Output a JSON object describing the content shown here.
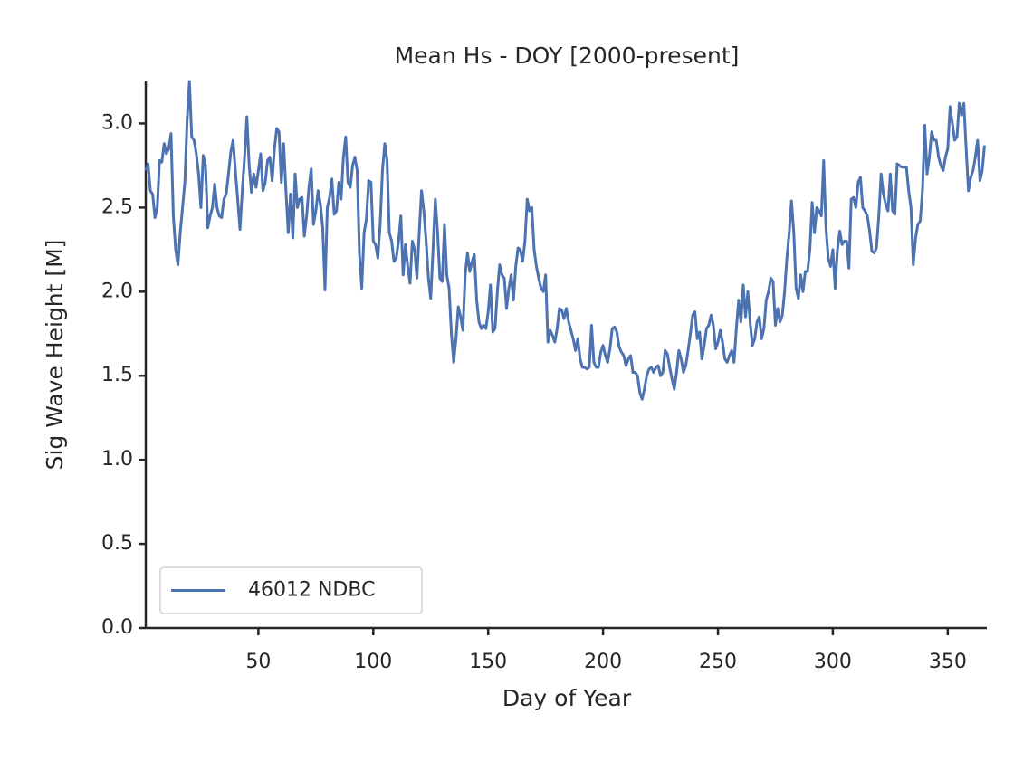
{
  "chart_data": {
    "type": "line",
    "title": "Mean Hs - DOY [2000-present]",
    "x_label": "Day of Year",
    "y_label": "Sig Wave Height [M]",
    "x": [
      1,
      2,
      3,
      4,
      5,
      6,
      7,
      8,
      9,
      10,
      11,
      12,
      13,
      14,
      15,
      16,
      17,
      18,
      19,
      20,
      21,
      22,
      23,
      24,
      25,
      26,
      27,
      28,
      29,
      30,
      31,
      32,
      33,
      34,
      35,
      36,
      37,
      38,
      39,
      40,
      41,
      42,
      43,
      44,
      45,
      46,
      47,
      48,
      49,
      50,
      51,
      52,
      53,
      54,
      55,
      56,
      57,
      58,
      59,
      60,
      61,
      62,
      63,
      64,
      65,
      66,
      67,
      68,
      69,
      70,
      71,
      72,
      73,
      74,
      75,
      76,
      77,
      78,
      79,
      80,
      81,
      82,
      83,
      84,
      85,
      86,
      87,
      88,
      89,
      90,
      91,
      92,
      93,
      94,
      95,
      96,
      97,
      98,
      99,
      100,
      101,
      102,
      103,
      104,
      105,
      106,
      107,
      108,
      109,
      110,
      111,
      112,
      113,
      114,
      115,
      116,
      117,
      118,
      119,
      120,
      121,
      122,
      123,
      124,
      125,
      126,
      127,
      128,
      129,
      130,
      131,
      132,
      133,
      134,
      135,
      136,
      137,
      138,
      139,
      140,
      141,
      142,
      143,
      144,
      145,
      146,
      147,
      148,
      149,
      150,
      151,
      152,
      153,
      154,
      155,
      156,
      157,
      158,
      159,
      160,
      161,
      162,
      163,
      164,
      165,
      166,
      167,
      168,
      169,
      170,
      171,
      172,
      173,
      174,
      175,
      176,
      177,
      178,
      179,
      180,
      181,
      182,
      183,
      184,
      185,
      186,
      187,
      188,
      189,
      190,
      191,
      192,
      193,
      194,
      195,
      196,
      197,
      198,
      199,
      200,
      201,
      202,
      203,
      204,
      205,
      206,
      207,
      208,
      209,
      210,
      211,
      212,
      213,
      214,
      215,
      216,
      217,
      218,
      219,
      220,
      221,
      222,
      223,
      224,
      225,
      226,
      227,
      228,
      229,
      230,
      231,
      232,
      233,
      234,
      235,
      236,
      237,
      238,
      239,
      240,
      241,
      242,
      243,
      244,
      245,
      246,
      247,
      248,
      249,
      250,
      251,
      252,
      253,
      254,
      255,
      256,
      257,
      258,
      259,
      260,
      261,
      262,
      263,
      264,
      265,
      266,
      267,
      268,
      269,
      270,
      271,
      272,
      273,
      274,
      275,
      276,
      277,
      278,
      279,
      280,
      281,
      282,
      283,
      284,
      285,
      286,
      287,
      288,
      289,
      290,
      291,
      292,
      293,
      294,
      295,
      296,
      297,
      298,
      299,
      300,
      301,
      302,
      303,
      304,
      305,
      306,
      307,
      308,
      309,
      310,
      311,
      312,
      313,
      314,
      315,
      316,
      317,
      318,
      319,
      320,
      321,
      322,
      323,
      324,
      325,
      326,
      327,
      328,
      329,
      330,
      331,
      332,
      333,
      334,
      335,
      336,
      337,
      338,
      339,
      340,
      341,
      342,
      343,
      344,
      345,
      346,
      347,
      348,
      349,
      350,
      351,
      352,
      353,
      354,
      355,
      356,
      357,
      358,
      359,
      360,
      361,
      362,
      363,
      364,
      365,
      366
    ],
    "series": [
      {
        "name": "46012 NDBC",
        "color": "#4c72b0",
        "values": [
          2.72,
          2.76,
          2.6,
          2.58,
          2.44,
          2.5,
          2.78,
          2.77,
          2.88,
          2.82,
          2.85,
          2.94,
          2.45,
          2.25,
          2.16,
          2.35,
          2.5,
          2.65,
          3.02,
          3.25,
          2.92,
          2.9,
          2.82,
          2.7,
          2.5,
          2.81,
          2.75,
          2.38,
          2.45,
          2.5,
          2.64,
          2.5,
          2.45,
          2.44,
          2.55,
          2.58,
          2.7,
          2.83,
          2.9,
          2.72,
          2.55,
          2.37,
          2.6,
          2.8,
          3.04,
          2.75,
          2.59,
          2.7,
          2.62,
          2.72,
          2.82,
          2.6,
          2.65,
          2.78,
          2.8,
          2.66,
          2.85,
          2.97,
          2.95,
          2.65,
          2.88,
          2.6,
          2.35,
          2.58,
          2.32,
          2.7,
          2.5,
          2.55,
          2.56,
          2.33,
          2.45,
          2.62,
          2.73,
          2.4,
          2.48,
          2.6,
          2.52,
          2.38,
          2.01,
          2.5,
          2.56,
          2.67,
          2.46,
          2.48,
          2.65,
          2.55,
          2.8,
          2.92,
          2.65,
          2.62,
          2.75,
          2.8,
          2.72,
          2.22,
          2.02,
          2.35,
          2.43,
          2.66,
          2.65,
          2.3,
          2.28,
          2.2,
          2.4,
          2.72,
          2.88,
          2.78,
          2.35,
          2.3,
          2.18,
          2.2,
          2.3,
          2.45,
          2.1,
          2.28,
          2.15,
          2.05,
          2.3,
          2.25,
          2.08,
          2.35,
          2.6,
          2.48,
          2.3,
          2.08,
          1.96,
          2.25,
          2.55,
          2.35,
          2.08,
          2.06,
          2.4,
          2.1,
          2.02,
          1.75,
          1.58,
          1.72,
          1.91,
          1.85,
          1.77,
          2.1,
          2.23,
          2.12,
          2.18,
          2.22,
          1.95,
          1.82,
          1.78,
          1.8,
          1.78,
          1.88,
          2.04,
          1.76,
          1.78,
          2.0,
          2.16,
          2.1,
          2.08,
          1.9,
          2.02,
          2.1,
          1.95,
          2.15,
          2.26,
          2.25,
          2.18,
          2.3,
          2.55,
          2.48,
          2.5,
          2.25,
          2.15,
          2.08,
          2.02,
          2.0,
          2.1,
          1.7,
          1.77,
          1.74,
          1.7,
          1.78,
          1.9,
          1.89,
          1.84,
          1.9,
          1.82,
          1.77,
          1.72,
          1.65,
          1.72,
          1.6,
          1.55,
          1.55,
          1.54,
          1.55,
          1.8,
          1.58,
          1.55,
          1.55,
          1.64,
          1.68,
          1.62,
          1.58,
          1.66,
          1.78,
          1.79,
          1.76,
          1.67,
          1.64,
          1.62,
          1.56,
          1.6,
          1.62,
          1.52,
          1.52,
          1.5,
          1.4,
          1.36,
          1.42,
          1.5,
          1.54,
          1.55,
          1.52,
          1.55,
          1.56,
          1.5,
          1.52,
          1.65,
          1.63,
          1.55,
          1.48,
          1.42,
          1.52,
          1.65,
          1.6,
          1.52,
          1.56,
          1.65,
          1.75,
          1.86,
          1.88,
          1.72,
          1.76,
          1.6,
          1.68,
          1.78,
          1.8,
          1.86,
          1.8,
          1.66,
          1.7,
          1.77,
          1.7,
          1.6,
          1.58,
          1.62,
          1.65,
          1.58,
          1.78,
          1.95,
          1.82,
          2.04,
          1.85,
          2.0,
          1.82,
          1.68,
          1.72,
          1.82,
          1.85,
          1.72,
          1.78,
          1.95,
          2.0,
          2.08,
          2.06,
          1.8,
          1.9,
          1.82,
          1.86,
          2.0,
          2.2,
          2.35,
          2.54,
          2.35,
          2.02,
          1.96,
          2.1,
          2.0,
          2.12,
          2.12,
          2.25,
          2.53,
          2.35,
          2.5,
          2.48,
          2.45,
          2.78,
          2.38,
          2.2,
          2.15,
          2.25,
          2.02,
          2.25,
          2.36,
          2.28,
          2.3,
          2.3,
          2.14,
          2.55,
          2.56,
          2.5,
          2.65,
          2.68,
          2.5,
          2.48,
          2.45,
          2.36,
          2.24,
          2.23,
          2.26,
          2.45,
          2.7,
          2.58,
          2.52,
          2.48,
          2.7,
          2.48,
          2.46,
          2.76,
          2.75,
          2.74,
          2.74,
          2.74,
          2.6,
          2.5,
          2.16,
          2.32,
          2.4,
          2.42,
          2.6,
          2.99,
          2.7,
          2.8,
          2.95,
          2.9,
          2.9,
          2.8,
          2.75,
          2.72,
          2.8,
          2.85,
          3.1,
          3.0,
          2.9,
          2.92,
          3.12,
          3.05,
          3.12,
          2.85,
          2.6,
          2.68,
          2.72,
          2.8,
          2.9,
          2.66,
          2.72,
          2.87
        ]
      }
    ],
    "xlim": [
      1,
      367
    ],
    "xticks": [
      50,
      100,
      150,
      200,
      250,
      300,
      350
    ],
    "ylim": [
      0,
      3.25
    ],
    "yticks": [
      {
        "value": 0,
        "label": "0.0"
      },
      0.5,
      {
        "value": 1,
        "label": "1.0"
      },
      1.5,
      {
        "value": 2,
        "label": "2.0"
      },
      2.5,
      {
        "value": 3,
        "label": "3.0"
      }
    ],
    "grid": false,
    "legend": "lower left"
  }
}
